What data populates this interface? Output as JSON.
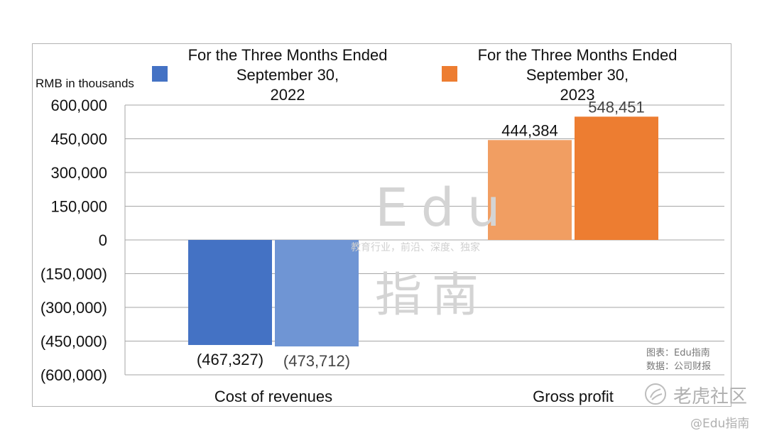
{
  "chart_data": {
    "type": "bar",
    "unit_label": "RMB in thousands",
    "categories": [
      "Cost of revenues",
      "Gross profit"
    ],
    "series": [
      {
        "name": "For the Three Months Ended September 30, 2022",
        "color": "#4472c4",
        "values": [
          -467327,
          444384
        ],
        "labels": [
          "(467,327)",
          "444,384"
        ]
      },
      {
        "name": "For the Three Months Ended September 30, 2023",
        "color": "#ed7d31",
        "values": [
          -473712,
          548451
        ],
        "labels": [
          "(473,712)",
          "548,451"
        ]
      }
    ],
    "bar_colors": [
      [
        "#4472c4",
        "#6f95d4"
      ],
      [
        "#f19e62",
        "#ed7d31"
      ]
    ],
    "ylim": [
      -600000,
      600000
    ],
    "yticks": [
      600000,
      450000,
      300000,
      150000,
      0,
      -150000,
      -300000,
      -450000,
      -600000
    ],
    "ytick_labels": [
      "600,000",
      "450,000",
      "300,000",
      "150,000",
      "0",
      "(150,000)",
      "(300,000)",
      "(450,000)",
      "(600,000)"
    ],
    "grid": true,
    "legend_position": "top"
  },
  "legend": {
    "item1_line1": "For the Three Months Ended",
    "item1_line2": "September 30,",
    "item1_line3": "2022",
    "item2_line1": "For the Three Months Ended",
    "item2_line2": "September 30,",
    "item2_line3": "2023"
  },
  "watermark": {
    "latin": "Edu",
    "chinese": "指南",
    "tagline": "教育行业，前沿、深度、独家"
  },
  "source": {
    "line1": "图表：Edu指南",
    "line2": "数据：公司财报"
  },
  "brand": {
    "platform": "老虎社区",
    "handle": "@Edu指南"
  }
}
